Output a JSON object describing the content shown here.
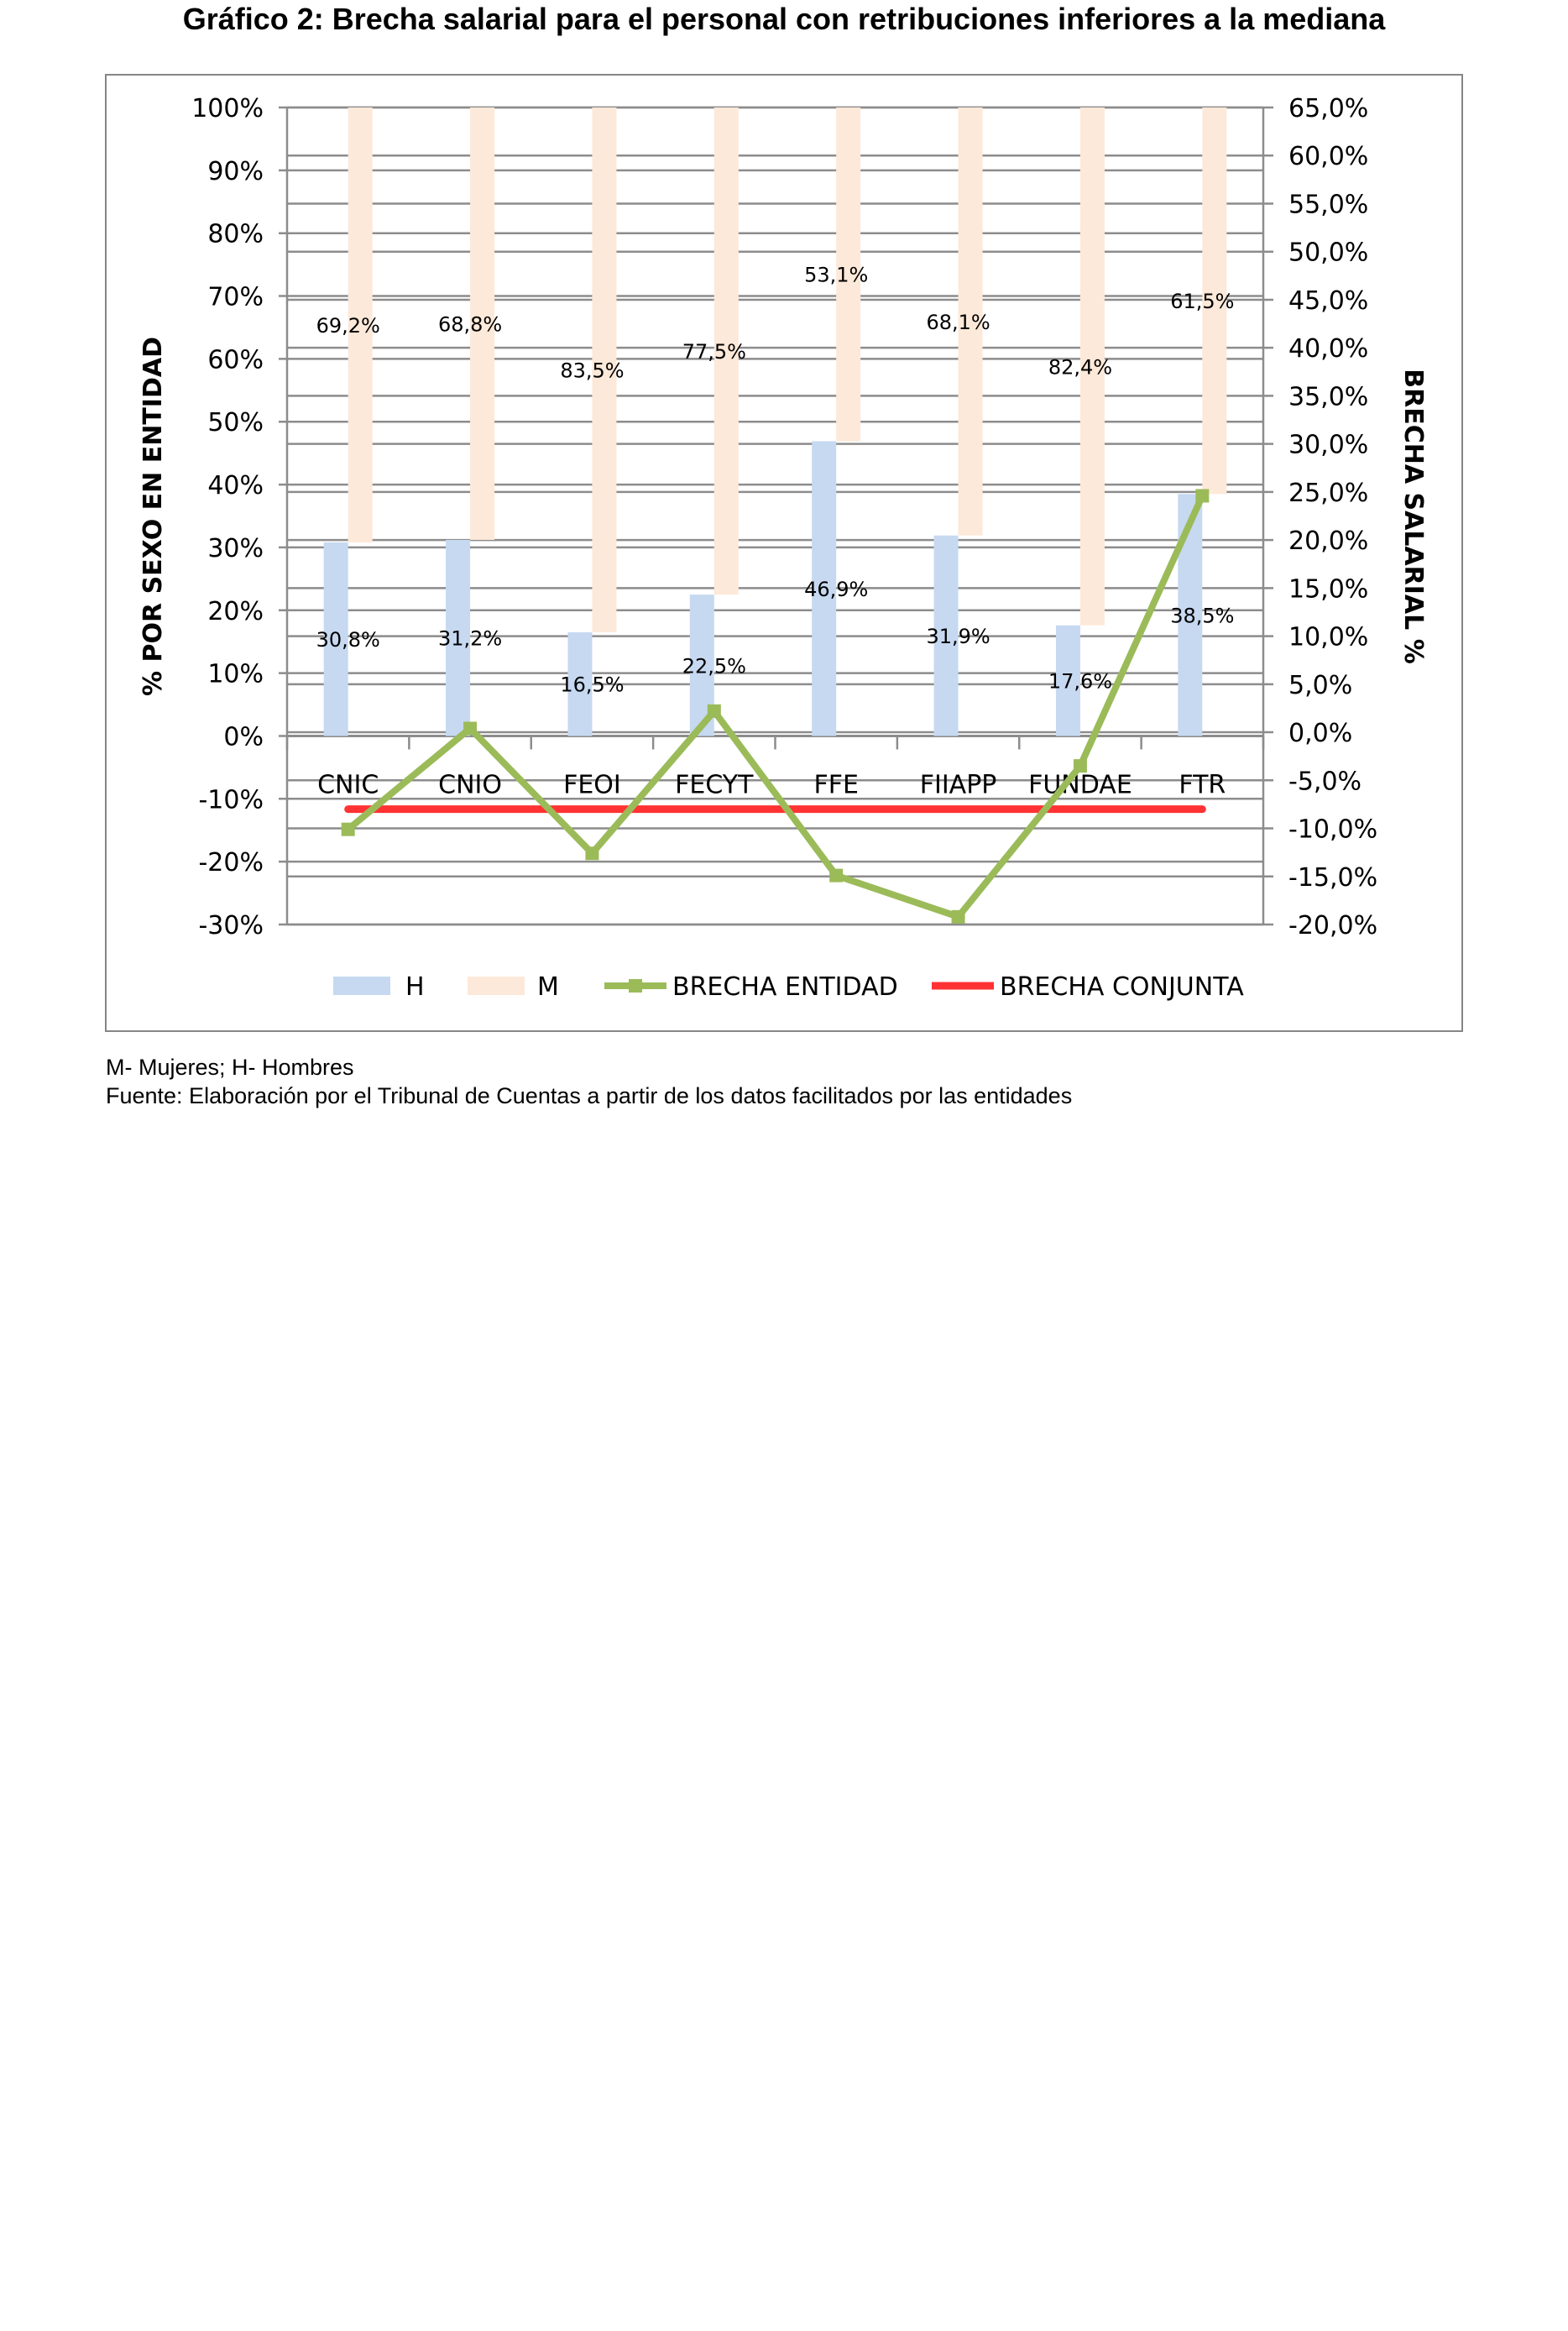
{
  "chart_data": {
    "type": "bar",
    "title": "Gráfico 2: Brecha salarial para el personal con retribuciones inferiores a la mediana",
    "categories": [
      "CNIC",
      "CNIO",
      "FEOI",
      "FECYT",
      "FFE",
      "FIIAPP",
      "FUNDAE",
      "FTR"
    ],
    "series": [
      {
        "name": "H",
        "type": "stacked-bar",
        "axis": "left",
        "color": "#c6d9f1",
        "values": [
          30.8,
          31.2,
          16.5,
          22.5,
          46.9,
          31.9,
          17.6,
          38.5
        ],
        "labels": [
          "30,8%",
          "31,2%",
          "16,5%",
          "22,5%",
          "46,9%",
          "31,9%",
          "17,6%",
          "38,5%"
        ]
      },
      {
        "name": "M",
        "type": "stacked-bar",
        "axis": "left",
        "color": "#fde9d9",
        "values": [
          69.2,
          68.8,
          83.5,
          77.5,
          53.1,
          68.1,
          82.4,
          61.5
        ],
        "labels": [
          "69,2%",
          "68,8%",
          "83,5%",
          "77,5%",
          "53,1%",
          "68,1%",
          "82,4%",
          "61,5%"
        ]
      },
      {
        "name": "BRECHA ENTIDAD",
        "type": "line",
        "axis": "right",
        "color": "#9bbb59",
        "values": [
          -10.1,
          0.4,
          -12.6,
          2.2,
          -14.9,
          -19.2,
          -3.5,
          24.6
        ]
      },
      {
        "name": "BRECHA CONJUNTA",
        "type": "line",
        "axis": "right",
        "color": "#ff3333",
        "values": [
          -8.0,
          -8.0,
          -8.0,
          -8.0,
          -8.0,
          -8.0,
          -8.0,
          -8.0
        ]
      }
    ],
    "ylabel": "% POR SEXO EN ENTIDAD",
    "y2label": "BRECHA SALARIAL %",
    "ylim": [
      -30,
      100
    ],
    "y2lim": [
      -20,
      65
    ],
    "yticks": [
      "100%",
      "90%",
      "80%",
      "70%",
      "60%",
      "50%",
      "40%",
      "30%",
      "20%",
      "10%",
      "0%",
      "-10%",
      "-20%",
      "-30%"
    ],
    "y2ticks": [
      "65,0%",
      "60,0%",
      "55,0%",
      "50,0%",
      "45,0%",
      "40,0%",
      "35,0%",
      "30,0%",
      "25,0%",
      "20,0%",
      "15,0%",
      "10,0%",
      "5,0%",
      "0,0%",
      "-5,0%",
      "-10,0%",
      "-15,0%",
      "-20,0%"
    ],
    "grid": true,
    "legend": "bottom"
  },
  "notes": {
    "legend_note": "M- Mujeres; H- Hombres",
    "source": "Fuente: Elaboración por el Tribunal de Cuentas a partir de los datos facilitados por las entidades"
  }
}
